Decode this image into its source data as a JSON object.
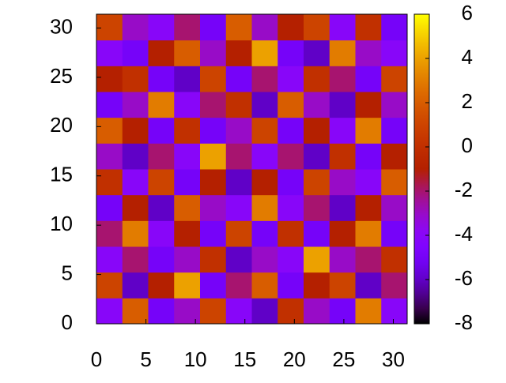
{
  "chart_data": {
    "type": "heatmap",
    "xlim": [
      0,
      31.4
    ],
    "ylim": [
      0,
      31.4
    ],
    "xticks": [
      0,
      5,
      10,
      15,
      20,
      25,
      30
    ],
    "yticks": [
      0,
      5,
      10,
      15,
      20,
      25,
      30
    ],
    "cblim": [
      -8,
      6
    ],
    "cbticks": [
      -8,
      -6,
      -4,
      -2,
      0,
      2,
      4,
      6
    ],
    "z": [
      [
        -4,
        2,
        -5,
        -3,
        1,
        -4,
        -6,
        0,
        -3,
        -5,
        3,
        -4
      ],
      [
        1,
        -6,
        -1,
        4,
        -5,
        -2,
        2,
        -5,
        -1,
        1,
        -6,
        -2
      ],
      [
        -4,
        -2,
        -5,
        -3,
        0,
        -6,
        -3,
        -4,
        4,
        -3,
        -2,
        0
      ],
      [
        -2,
        3,
        -4,
        -1,
        -5,
        1,
        -5,
        0,
        -5,
        -1,
        3,
        -5
      ],
      [
        -5,
        -1,
        -6,
        2,
        -3,
        -4,
        3,
        -4,
        -2,
        -6,
        -1,
        -3
      ],
      [
        0,
        -4,
        1,
        -5,
        -1,
        -6,
        -1,
        -5,
        1,
        -3,
        -4,
        2
      ],
      [
        -3,
        -6,
        -2,
        -4,
        4,
        -2,
        -4,
        -2,
        -6,
        0,
        -5,
        -1
      ],
      [
        2,
        -1,
        -5,
        0,
        -5,
        -3,
        1,
        -5,
        -1,
        -4,
        3,
        -5
      ],
      [
        -5,
        -3,
        3,
        -4,
        -2,
        0,
        -6,
        2,
        -3,
        -6,
        -1,
        -3
      ],
      [
        -1,
        0,
        -5,
        -6,
        1,
        -5,
        -2,
        -4,
        0,
        -2,
        -5,
        1
      ],
      [
        -4,
        -5,
        -1,
        2,
        -3,
        -1,
        4,
        -5,
        -6,
        3,
        -3,
        -4
      ],
      [
        1,
        -3,
        -4,
        -2,
        -5,
        2,
        -3,
        -1,
        1,
        -4,
        0,
        -5
      ]
    ]
  }
}
